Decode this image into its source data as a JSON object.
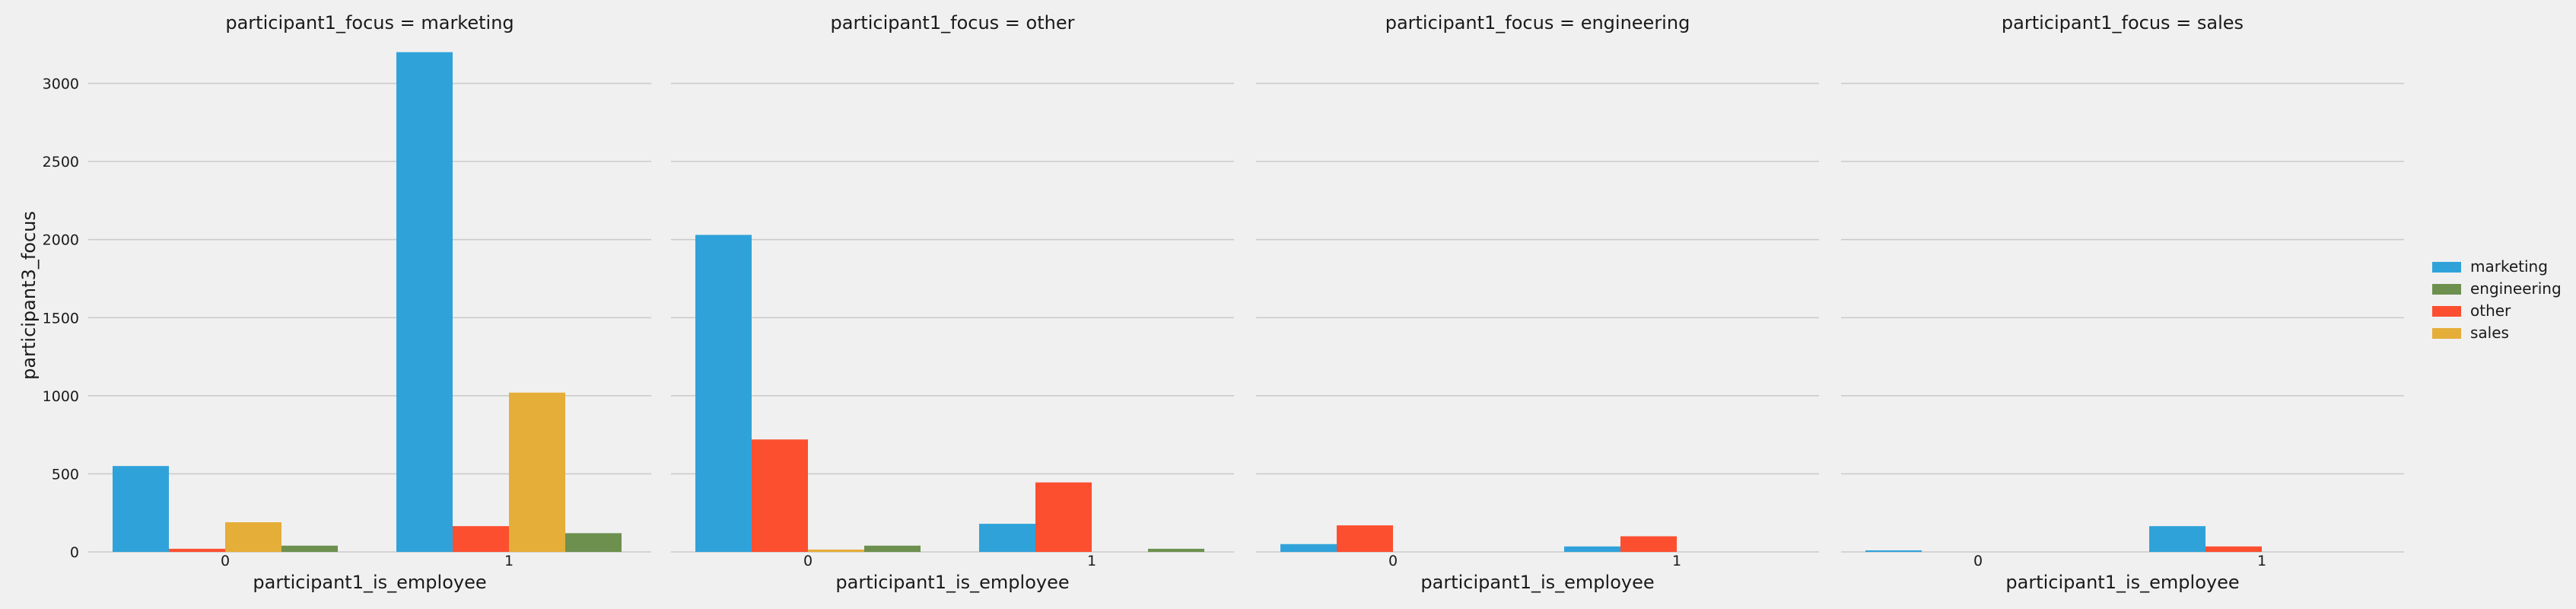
{
  "chart_data": {
    "type": "bar",
    "facet_titles": [
      "participant1_focus = marketing",
      "participant1_focus = other",
      "participant1_focus = engineering",
      "participant1_focus = sales"
    ],
    "categories": [
      "0",
      "1"
    ],
    "xlabel": "participant1_is_employee",
    "ylabel": "participant3_focus",
    "ylim": [
      0,
      3300
    ],
    "yticks": [
      0,
      500,
      1000,
      1500,
      2000,
      2500,
      3000
    ],
    "grid": "horizontal",
    "legend_position": "right",
    "series": [
      {
        "name": "marketing",
        "color": "#30a2da"
      },
      {
        "name": "other",
        "color": "#fc4f30"
      },
      {
        "name": "sales",
        "color": "#e5ae38"
      },
      {
        "name": "engineering",
        "color": "#6d904f"
      }
    ],
    "legend_order": [
      "marketing",
      "engineering",
      "other",
      "sales"
    ],
    "facets": [
      {
        "values": {
          "marketing": [
            550,
            3200
          ],
          "other": [
            20,
            165
          ],
          "sales": [
            190,
            1020
          ],
          "engineering": [
            40,
            120
          ]
        }
      },
      {
        "values": {
          "marketing": [
            2030,
            180
          ],
          "other": [
            720,
            445
          ],
          "sales": [
            15,
            0
          ],
          "engineering": [
            40,
            20
          ]
        }
      },
      {
        "values": {
          "marketing": [
            50,
            35
          ],
          "other": [
            170,
            100
          ],
          "sales": [
            0,
            0
          ],
          "engineering": [
            0,
            0
          ]
        }
      },
      {
        "values": {
          "marketing": [
            10,
            165
          ],
          "other": [
            0,
            35
          ],
          "sales": [
            0,
            0
          ],
          "engineering": [
            0,
            0
          ]
        }
      }
    ]
  }
}
